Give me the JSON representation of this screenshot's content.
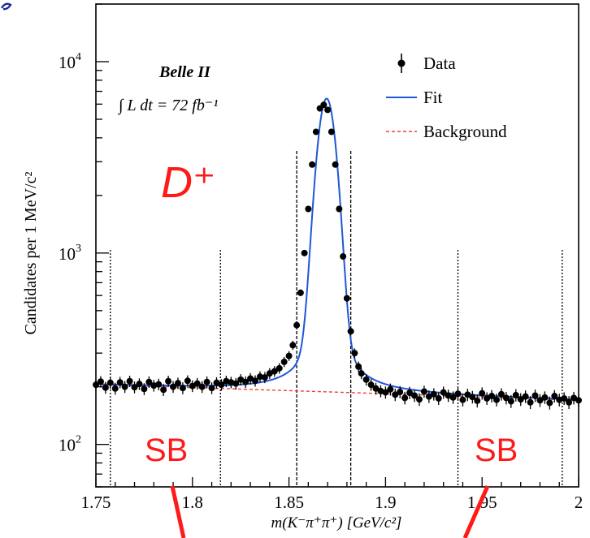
{
  "chart_data": {
    "type": "scatter",
    "title": "",
    "experiment_label": "Belle II",
    "luminosity_label": "∫ L dt = 72 fb⁻¹",
    "xlabel": "m(K⁻π⁺π⁺) [GeV/c²]",
    "ylabel": "Candidates per 1 MeV/c²",
    "xlim": [
      1.75,
      2.0
    ],
    "ylim": [
      60,
      20000
    ],
    "y_scale": "log",
    "x_ticks": [
      {
        "value": 1.75,
        "label": "1.75"
      },
      {
        "value": 1.8,
        "label": "1.8"
      },
      {
        "value": 1.85,
        "label": "1.85"
      },
      {
        "value": 1.9,
        "label": "1.9"
      },
      {
        "value": 1.95,
        "label": "1.95"
      },
      {
        "value": 2.0,
        "label": "2"
      }
    ],
    "y_ticks": [
      {
        "value": 100,
        "label_base": "10",
        "label_exp": "2"
      },
      {
        "value": 1000,
        "label_base": "10",
        "label_exp": "3"
      },
      {
        "value": 10000,
        "label_base": "10",
        "label_exp": "4"
      }
    ],
    "legend": {
      "placement": "top-right",
      "entries": [
        {
          "label": "Data",
          "style": "marker",
          "color": "#000000"
        },
        {
          "label": "Fit",
          "style": "solid",
          "color": "#1f57d6"
        },
        {
          "label": "Background",
          "style": "dashed",
          "color": "#e8442c"
        }
      ]
    },
    "particle_label": "D⁺",
    "sideband_label": "SB",
    "annotation_color": "#ff1a1a",
    "signal_window_lines": [
      1.854,
      1.882
    ],
    "sideband_lines": [
      1.7575,
      1.8145,
      1.9375,
      1.9915
    ],
    "sideband_regions": [
      [
        1.7575,
        1.8145
      ],
      [
        1.9375,
        1.9915
      ]
    ],
    "fit_model": {
      "mean": 1.8695,
      "sigma": 0.0042,
      "peak_amplitude": 5950,
      "tail_amplitude": 280,
      "tail_width": 0.009,
      "background_at_xmin": 205,
      "background_at_xmax": 170
    },
    "series": [
      {
        "name": "Data",
        "kind": "points",
        "x": [
          1.75,
          1.7525,
          1.755,
          1.7575,
          1.76,
          1.7625,
          1.765,
          1.7675,
          1.77,
          1.7725,
          1.775,
          1.7775,
          1.78,
          1.7825,
          1.785,
          1.7875,
          1.79,
          1.7925,
          1.795,
          1.7975,
          1.8,
          1.8025,
          1.805,
          1.8075,
          1.81,
          1.8125,
          1.815,
          1.8175,
          1.82,
          1.8225,
          1.825,
          1.8275,
          1.83,
          1.8325,
          1.835,
          1.8375,
          1.84,
          1.8425,
          1.845,
          1.8475,
          1.85,
          1.852,
          1.854,
          1.856,
          1.858,
          1.86,
          1.862,
          1.864,
          1.866,
          1.868,
          1.87,
          1.872,
          1.874,
          1.876,
          1.878,
          1.88,
          1.882,
          1.884,
          1.886,
          1.8875,
          1.89,
          1.8925,
          1.895,
          1.8975,
          1.9,
          1.9025,
          1.905,
          1.9075,
          1.91,
          1.9125,
          1.915,
          1.9175,
          1.92,
          1.9225,
          1.925,
          1.9275,
          1.93,
          1.9325,
          1.935,
          1.9375,
          1.94,
          1.9425,
          1.945,
          1.9475,
          1.95,
          1.9525,
          1.955,
          1.9575,
          1.96,
          1.9625,
          1.965,
          1.9675,
          1.97,
          1.9725,
          1.975,
          1.9775,
          1.98,
          1.9825,
          1.985,
          1.9875,
          1.99,
          1.9925,
          1.995,
          1.9975,
          2.0
        ],
        "y": [
          205,
          213,
          198,
          210,
          196,
          211,
          200,
          214,
          199,
          207,
          195,
          212,
          203,
          206,
          193,
          214,
          200,
          209,
          197,
          215,
          202,
          208,
          200,
          212,
          197,
          210,
          205,
          214,
          211,
          208,
          218,
          212,
          221,
          215,
          226,
          224,
          235,
          241,
          250,
          270,
          290,
          330,
          420,
          620,
          1000,
          1700,
          2900,
          4300,
          5700,
          5950,
          5600,
          4300,
          2900,
          1700,
          960,
          580,
          390,
          300,
          255,
          235,
          218,
          205,
          196,
          190,
          187,
          194,
          182,
          188,
          175,
          186,
          180,
          172,
          189,
          178,
          183,
          174,
          187,
          180,
          176,
          184,
          171,
          182,
          177,
          169,
          185,
          174,
          179,
          171,
          183,
          175,
          168,
          181,
          172,
          178,
          166,
          180,
          170,
          176,
          165,
          179,
          171,
          174,
          166,
          175,
          170
        ]
      }
    ]
  }
}
